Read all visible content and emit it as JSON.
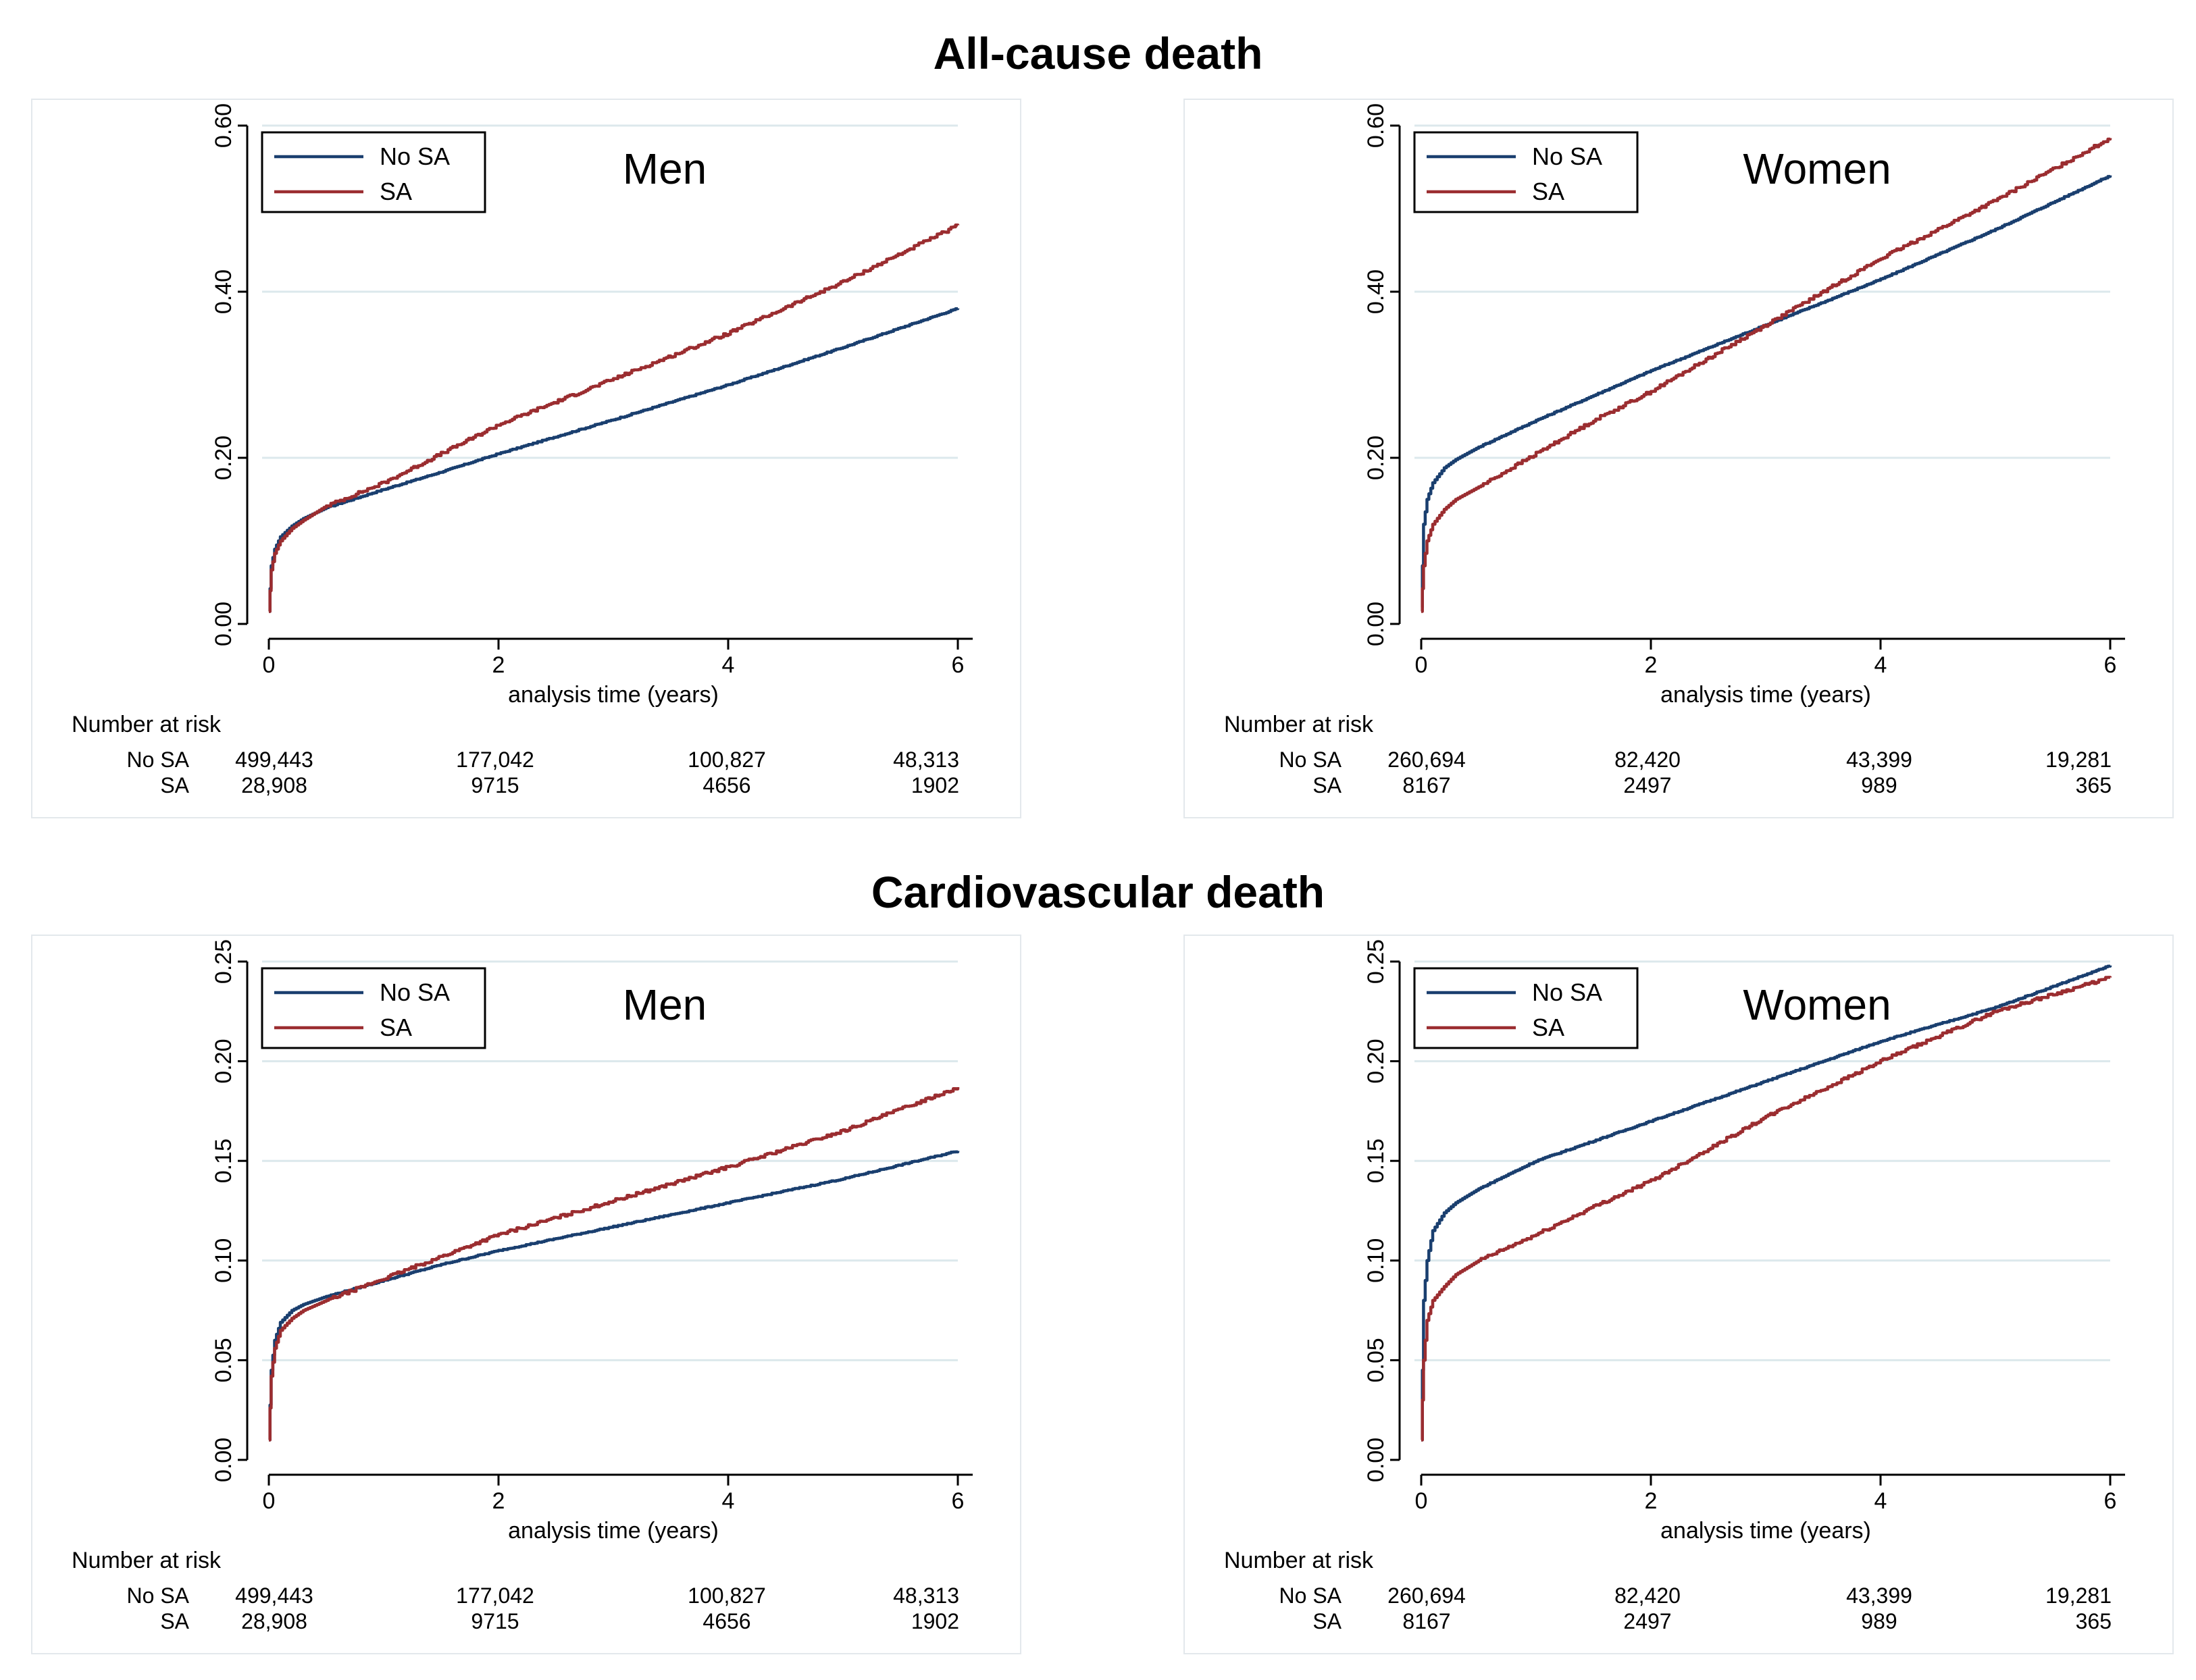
{
  "titles": {
    "top": "All-cause death",
    "bottom": "Cardiovascular death"
  },
  "colors": {
    "no_sa": "#1a3f6f",
    "sa": "#9b2d30",
    "grid": "#dce8ec",
    "panel_border": "#e3e8ec"
  },
  "chart_data": [
    {
      "type": "line",
      "title": "Men",
      "section": "All-cause death",
      "xlabel": "analysis time (years)",
      "ylabel": "",
      "xlim": [
        0,
        6
      ],
      "ylim": [
        0,
        0.6
      ],
      "x_ticks": [
        0,
        2,
        4,
        6
      ],
      "x_tick_labels": [
        "0",
        "2",
        "4",
        "6"
      ],
      "y_ticks": [
        0,
        0.2,
        0.4,
        0.6
      ],
      "y_tick_labels": [
        "0.00",
        "0.20",
        "0.40",
        "0.60"
      ],
      "grid": true,
      "legend": {
        "position": "top-left",
        "entries": [
          "No SA",
          "SA"
        ]
      },
      "series": [
        {
          "name": "No SA",
          "x": [
            0,
            0.02,
            0.05,
            0.1,
            0.2,
            0.3,
            0.5,
            1,
            1.5,
            2,
            3,
            4,
            5,
            6
          ],
          "values": [
            0.015,
            0.07,
            0.09,
            0.105,
            0.118,
            0.127,
            0.14,
            0.162,
            0.183,
            0.205,
            0.246,
            0.288,
            0.333,
            0.38
          ]
        },
        {
          "name": "SA",
          "x": [
            0,
            0.02,
            0.05,
            0.1,
            0.2,
            0.3,
            0.5,
            1,
            1.5,
            2,
            3,
            4,
            5,
            6
          ],
          "values": [
            0.015,
            0.065,
            0.085,
            0.1,
            0.115,
            0.125,
            0.142,
            0.17,
            0.205,
            0.24,
            0.295,
            0.35,
            0.412,
            0.48
          ]
        }
      ],
      "risk_table": {
        "header": "Number at risk",
        "rows": [
          {
            "label": "No SA",
            "values": [
              "499,443",
              "177,042",
              "100,827",
              "48,313"
            ]
          },
          {
            "label": "SA",
            "values": [
              "28,908",
              "9715",
              "4656",
              "1902"
            ]
          }
        ]
      }
    },
    {
      "type": "line",
      "title": "Women",
      "section": "All-cause death",
      "xlabel": "analysis time (years)",
      "ylabel": "",
      "xlim": [
        0,
        6
      ],
      "ylim": [
        0,
        0.6
      ],
      "x_ticks": [
        0,
        2,
        4,
        6
      ],
      "x_tick_labels": [
        "0",
        "2",
        "4",
        "6"
      ],
      "y_ticks": [
        0,
        0.2,
        0.4,
        0.6
      ],
      "y_tick_labels": [
        "0.00",
        "0.20",
        "0.40",
        "0.60"
      ],
      "grid": true,
      "legend": {
        "position": "top-left",
        "entries": [
          "No SA",
          "SA"
        ]
      },
      "series": [
        {
          "name": "No SA",
          "x": [
            0,
            0.02,
            0.05,
            0.1,
            0.2,
            0.3,
            0.5,
            1,
            1.5,
            2,
            3,
            4,
            5,
            6
          ],
          "values": [
            0.02,
            0.12,
            0.15,
            0.17,
            0.188,
            0.198,
            0.213,
            0.245,
            0.275,
            0.305,
            0.36,
            0.415,
            0.475,
            0.54
          ]
        },
        {
          "name": "SA",
          "x": [
            0,
            0.02,
            0.05,
            0.1,
            0.2,
            0.3,
            0.5,
            1,
            1.5,
            2,
            3,
            4,
            5,
            6
          ],
          "values": [
            0.015,
            0.07,
            0.1,
            0.12,
            0.138,
            0.15,
            0.165,
            0.205,
            0.245,
            0.28,
            0.36,
            0.44,
            0.51,
            0.585
          ]
        }
      ],
      "risk_table": {
        "header": "Number at risk",
        "rows": [
          {
            "label": "No SA",
            "values": [
              "260,694",
              "82,420",
              "43,399",
              "19,281"
            ]
          },
          {
            "label": "SA",
            "values": [
              "8167",
              "2497",
              "989",
              "365"
            ]
          }
        ]
      }
    },
    {
      "type": "line",
      "title": "Men",
      "section": "Cardiovascular death",
      "xlabel": "analysis time (years)",
      "ylabel": "",
      "xlim": [
        0,
        6
      ],
      "ylim": [
        0,
        0.25
      ],
      "x_ticks": [
        0,
        2,
        4,
        6
      ],
      "x_tick_labels": [
        "0",
        "2",
        "4",
        "6"
      ],
      "y_ticks": [
        0,
        0.05,
        0.1,
        0.15,
        0.2,
        0.25
      ],
      "y_tick_labels": [
        "0.00",
        "0.05",
        "0.10",
        "0.15",
        "0.20",
        "0.25"
      ],
      "grid": true,
      "legend": {
        "position": "top-left",
        "entries": [
          "No SA",
          "SA"
        ]
      },
      "series": [
        {
          "name": "No SA",
          "x": [
            0,
            0.02,
            0.05,
            0.1,
            0.2,
            0.3,
            0.5,
            1,
            1.5,
            2,
            3,
            4,
            5,
            6
          ],
          "values": [
            0.01,
            0.045,
            0.06,
            0.069,
            0.075,
            0.078,
            0.082,
            0.09,
            0.098,
            0.105,
            0.117,
            0.129,
            0.141,
            0.155
          ]
        },
        {
          "name": "SA",
          "x": [
            0,
            0.02,
            0.05,
            0.1,
            0.2,
            0.3,
            0.5,
            1,
            1.5,
            2,
            3,
            4,
            5,
            6
          ],
          "values": [
            0.01,
            0.042,
            0.056,
            0.065,
            0.071,
            0.075,
            0.08,
            0.091,
            0.102,
            0.113,
            0.13,
            0.147,
            0.165,
            0.187
          ]
        }
      ],
      "risk_table": {
        "header": "Number at risk",
        "rows": [
          {
            "label": "No SA",
            "values": [
              "499,443",
              "177,042",
              "100,827",
              "48,313"
            ]
          },
          {
            "label": "SA",
            "values": [
              "28,908",
              "9715",
              "4656",
              "1902"
            ]
          }
        ]
      }
    },
    {
      "type": "line",
      "title": "Women",
      "section": "Cardiovascular death",
      "xlabel": "analysis time (years)",
      "ylabel": "",
      "xlim": [
        0,
        6
      ],
      "ylim": [
        0,
        0.25
      ],
      "x_ticks": [
        0,
        2,
        4,
        6
      ],
      "x_tick_labels": [
        "0",
        "2",
        "4",
        "6"
      ],
      "y_ticks": [
        0,
        0.05,
        0.1,
        0.15,
        0.2,
        0.25
      ],
      "y_tick_labels": [
        "0.00",
        "0.05",
        "0.10",
        "0.15",
        "0.20",
        "0.25"
      ],
      "grid": true,
      "legend": {
        "position": "top-left",
        "entries": [
          "No SA",
          "SA"
        ]
      },
      "series": [
        {
          "name": "No SA",
          "x": [
            0,
            0.02,
            0.05,
            0.1,
            0.2,
            0.3,
            0.5,
            1,
            1.5,
            2,
            3,
            4,
            5,
            6
          ],
          "values": [
            0.01,
            0.08,
            0.1,
            0.115,
            0.124,
            0.129,
            0.136,
            0.15,
            0.16,
            0.17,
            0.19,
            0.21,
            0.227,
            0.248
          ]
        },
        {
          "name": "SA",
          "x": [
            0,
            0.02,
            0.05,
            0.1,
            0.2,
            0.3,
            0.5,
            1,
            1.5,
            2,
            3,
            4,
            5,
            6
          ],
          "values": [
            0.01,
            0.05,
            0.07,
            0.08,
            0.087,
            0.093,
            0.1,
            0.113,
            0.127,
            0.14,
            0.172,
            0.2,
            0.225,
            0.242
          ]
        }
      ],
      "risk_table": {
        "header": "Number at risk",
        "rows": [
          {
            "label": "No SA",
            "values": [
              "260,694",
              "82,420",
              "43,399",
              "19,281"
            ]
          },
          {
            "label": "SA",
            "values": [
              "8167",
              "2497",
              "989",
              "365"
            ]
          }
        ]
      }
    }
  ]
}
